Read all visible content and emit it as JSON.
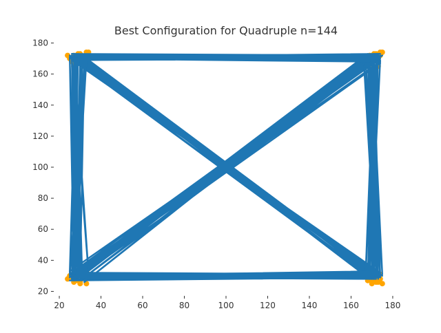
{
  "chart_data": {
    "type": "line",
    "title": "Best Configuration for Quadruple n=144",
    "xlabel": "",
    "ylabel": "",
    "xlim": [
      18,
      182
    ],
    "ylim": [
      18,
      182
    ],
    "x_ticks": [
      20,
      40,
      60,
      80,
      100,
      120,
      140,
      160,
      180
    ],
    "y_ticks": [
      20,
      40,
      60,
      80,
      100,
      120,
      140,
      160,
      180
    ],
    "grid": false,
    "legend": "none",
    "colors": {
      "line": "#1f77b4",
      "point": "#ffa500",
      "text": "#333333"
    },
    "series": [
      {
        "x": [
          26,
          171,
          167,
          28,
          32,
          170,
          172,
          27,
          26,
          173,
          168,
          33,
          31,
          172,
          174,
          25,
          27,
          169,
          166,
          30,
          29,
          174,
          171,
          26,
          28,
          168,
          172,
          34,
          33,
          175,
          169,
          27,
          25,
          172,
          170,
          31,
          30,
          171,
          174,
          28,
          27,
          173,
          167,
          32,
          34,
          170,
          168,
          25,
          26,
          174
        ],
        "y": [
          30,
          171,
          172,
          31,
          29,
          170,
          168,
          30,
          28,
          173,
          170,
          27,
          32,
          169,
          172,
          29,
          31,
          171,
          168,
          30,
          29,
          167,
          173,
          32,
          28,
          172,
          170,
          31,
          30,
          172,
          169,
          27,
          33,
          170,
          171,
          28,
          29,
          173,
          168,
          30,
          32,
          171,
          170,
          26,
          31,
          169,
          172,
          29,
          30,
          170
        ]
      },
      {
        "x": [
          27,
          172,
          168,
          29,
          31,
          171,
          173,
          26,
          25,
          174,
          169,
          32,
          30,
          173,
          175,
          26,
          28,
          170,
          167,
          31,
          28,
          173,
          170,
          27,
          29,
          167,
          171,
          33,
          34,
          174,
          170,
          26,
          26,
          171,
          169,
          30,
          31,
          172,
          173,
          27,
          28,
          174,
          168,
          31,
          33,
          169,
          167,
          26,
          27,
          173
        ],
        "y": [
          170,
          30,
          29,
          171,
          169,
          31,
          33,
          170,
          172,
          29,
          31,
          171,
          168,
          32,
          30,
          169,
          171,
          28,
          30,
          170,
          172,
          31,
          28,
          169,
          171,
          30,
          32,
          170,
          168,
          29,
          31,
          172,
          170,
          28,
          30,
          169,
          171,
          31,
          29,
          170,
          168,
          32,
          30,
          171,
          169,
          28,
          31,
          170,
          172,
          29
        ]
      },
      {
        "x": [
          27,
          28,
          26,
          29,
          30,
          27,
          25,
          28,
          31,
          26,
          29,
          27,
          33,
          25,
          28,
          30,
          26,
          34,
          27,
          29,
          31,
          28,
          26,
          30,
          32,
          27,
          29,
          25,
          28,
          31,
          26,
          30
        ],
        "y": [
          30,
          170,
          172,
          31,
          168,
          29,
          171,
          33,
          170,
          28,
          172,
          31,
          169,
          30,
          173,
          29,
          170,
          32,
          171,
          28,
          172,
          30,
          169,
          31,
          170,
          29,
          173,
          32,
          168,
          30,
          171,
          29
        ]
      },
      {
        "x": [
          171,
          172,
          170,
          173,
          169,
          174,
          168,
          172,
          167,
          173,
          170,
          175,
          169,
          171,
          168,
          174,
          170,
          172,
          166,
          173,
          171,
          169,
          174,
          168,
          172,
          170,
          173,
          167,
          171,
          174,
          169,
          172
        ],
        "y": [
          30,
          170,
          172,
          31,
          168,
          29,
          171,
          33,
          170,
          28,
          172,
          31,
          169,
          30,
          173,
          29,
          170,
          32,
          171,
          28,
          172,
          30,
          169,
          31,
          170,
          29,
          173,
          32,
          168,
          30,
          171,
          29
        ]
      },
      {
        "x": [
          27,
          171,
          28,
          172,
          26,
          170,
          29,
          173,
          25,
          169,
          30,
          174,
          27,
          168,
          28,
          172,
          31,
          171,
          26,
          170,
          29,
          173,
          33,
          167,
          28,
          172,
          26,
          171,
          30,
          169,
          27,
          174
        ],
        "y": [
          30,
          31,
          29,
          28,
          32,
          30,
          31,
          29,
          27,
          30,
          32,
          31,
          30,
          29,
          28,
          33,
          30,
          31,
          29,
          28,
          30,
          32,
          31,
          30,
          29,
          28,
          31,
          30,
          32,
          29,
          28,
          30
        ]
      },
      {
        "x": [
          27,
          171,
          28,
          172,
          26,
          170,
          29,
          173,
          25,
          169,
          30,
          174,
          27,
          168,
          28,
          172,
          31,
          171,
          26,
          170,
          29,
          173,
          33,
          167,
          28,
          172,
          26,
          171,
          30,
          169,
          27,
          174
        ],
        "y": [
          170,
          171,
          172,
          169,
          173,
          170,
          171,
          172,
          170,
          168,
          171,
          173,
          169,
          170,
          172,
          171,
          170,
          169,
          173,
          171,
          172,
          170,
          169,
          171,
          170,
          172,
          173,
          171,
          169,
          170,
          172,
          171
        ]
      }
    ],
    "points": {
      "x": [
        25,
        27,
        29,
        31,
        33,
        26,
        28,
        30,
        24,
        26,
        28,
        30,
        32,
        34,
        27,
        25,
        27,
        29,
        31,
        33,
        26,
        28,
        30,
        24,
        26,
        28,
        30,
        32,
        34,
        27,
        167,
        169,
        171,
        173,
        175,
        168,
        170,
        172,
        174,
        166,
        168,
        170,
        172,
        174,
        173,
        167,
        169,
        171,
        173,
        175,
        168,
        170,
        172,
        174,
        166,
        168,
        170,
        172,
        174,
        173
      ],
      "y": [
        170,
        172,
        173,
        171,
        174,
        168,
        166,
        173,
        172,
        169,
        167,
        171,
        170,
        174,
        165,
        30,
        28,
        27,
        31,
        25,
        29,
        32,
        26,
        28,
        30,
        27,
        25,
        29,
        31,
        26,
        170,
        172,
        173,
        171,
        174,
        168,
        166,
        173,
        172,
        169,
        167,
        171,
        170,
        174,
        165,
        30,
        28,
        27,
        31,
        25,
        29,
        32,
        26,
        28,
        30,
        27,
        25,
        29,
        31,
        26
      ]
    }
  }
}
